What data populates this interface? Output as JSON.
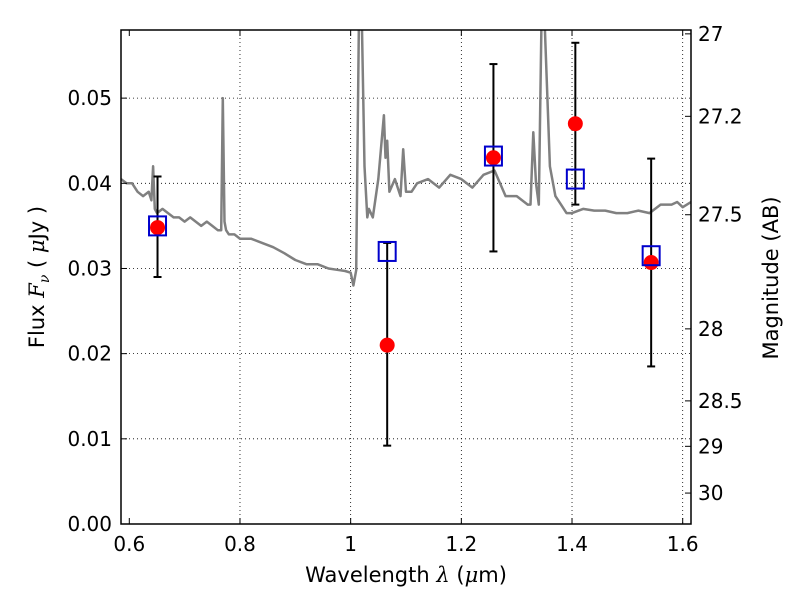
{
  "chart_data": {
    "type": "scatter",
    "xlabel": "Wavelength",
    "xlabel_symbol": "λ",
    "xlabel_unit_open": "(",
    "xlabel_unit_mu": "μ",
    "xlabel_unit_rest": "m)",
    "ylabel": "Flux",
    "ylabel_symbol": "F",
    "ylabel_subscript": "ν",
    "ylabel_unit_open": "( ",
    "ylabel_unit_mu": "μ",
    "ylabel_unit_rest": "Jy )",
    "y2label": "Magnitude (AB)",
    "xlim": [
      0.585,
      1.615
    ],
    "ylim": [
      0.0,
      0.058
    ],
    "x_ticks": [
      "0.6",
      "0.8",
      "1",
      "1.2",
      "1.4",
      "1.6"
    ],
    "x_tick_values": [
      0.6,
      0.8,
      1.0,
      1.2,
      1.4,
      1.6
    ],
    "y_ticks": [
      "0.00",
      "0.01",
      "0.02",
      "0.03",
      "0.04",
      "0.05"
    ],
    "y_tick_values": [
      0.0,
      0.01,
      0.02,
      0.03,
      0.04,
      0.05
    ],
    "mag_ticks": [
      "27",
      "27.2",
      "27.5",
      "28",
      "28.5",
      "29",
      "30"
    ],
    "mag_tick_values": [
      27,
      27.2,
      27.5,
      28,
      28.5,
      29,
      30
    ],
    "grid": true,
    "series": [
      {
        "kind": "spectrum",
        "color": "#808080",
        "x": [
          0.585,
          0.595,
          0.605,
          0.615,
          0.625,
          0.635,
          0.64,
          0.643,
          0.646,
          0.65,
          0.66,
          0.67,
          0.68,
          0.69,
          0.7,
          0.71,
          0.72,
          0.73,
          0.74,
          0.75,
          0.76,
          0.766,
          0.769,
          0.772,
          0.775,
          0.78,
          0.79,
          0.8,
          0.82,
          0.84,
          0.86,
          0.88,
          0.9,
          0.92,
          0.94,
          0.96,
          0.98,
          0.99,
          1.0,
          1.005,
          1.01,
          1.015,
          1.02,
          1.025,
          1.03,
          1.033,
          1.04,
          1.05,
          1.06,
          1.063,
          1.066,
          1.07,
          1.08,
          1.09,
          1.095,
          1.1,
          1.11,
          1.12,
          1.14,
          1.16,
          1.18,
          1.2,
          1.22,
          1.24,
          1.26,
          1.28,
          1.3,
          1.32,
          1.325,
          1.33,
          1.335,
          1.34,
          1.345,
          1.35,
          1.36,
          1.37,
          1.38,
          1.39,
          1.4,
          1.42,
          1.44,
          1.46,
          1.48,
          1.5,
          1.52,
          1.54,
          1.56,
          1.58,
          1.59,
          1.6,
          1.615
        ],
        "y": [
          0.0405,
          0.04,
          0.04,
          0.039,
          0.0385,
          0.039,
          0.038,
          0.042,
          0.037,
          0.0365,
          0.037,
          0.0365,
          0.036,
          0.036,
          0.0355,
          0.036,
          0.0355,
          0.035,
          0.0355,
          0.035,
          0.0345,
          0.0345,
          0.05,
          0.0355,
          0.0345,
          0.034,
          0.034,
          0.0335,
          0.0335,
          0.033,
          0.0325,
          0.0318,
          0.031,
          0.0305,
          0.0305,
          0.03,
          0.0298,
          0.0297,
          0.0295,
          0.028,
          0.0298,
          0.06,
          0.06,
          0.042,
          0.036,
          0.037,
          0.036,
          0.0405,
          0.048,
          0.043,
          0.045,
          0.039,
          0.0405,
          0.0385,
          0.044,
          0.039,
          0.039,
          0.04,
          0.0405,
          0.0395,
          0.041,
          0.0405,
          0.0395,
          0.041,
          0.0415,
          0.0385,
          0.0385,
          0.0375,
          0.0375,
          0.046,
          0.04,
          0.0375,
          0.06,
          0.06,
          0.042,
          0.0385,
          0.0375,
          0.0365,
          0.0365,
          0.037,
          0.0368,
          0.0368,
          0.0365,
          0.0365,
          0.0368,
          0.0365,
          0.0375,
          0.0375,
          0.0378,
          0.0372,
          0.0378
        ]
      },
      {
        "kind": "model-boxes",
        "color": "#0000cc",
        "x": [
          0.651,
          1.066,
          1.258,
          1.406,
          1.543
        ],
        "y": [
          0.035,
          0.032,
          0.0432,
          0.0405,
          0.0315
        ]
      },
      {
        "kind": "observed",
        "color": "#ff0000",
        "x": [
          0.651,
          1.066,
          1.258,
          1.406,
          1.543
        ],
        "y": [
          0.0348,
          0.021,
          0.043,
          0.047,
          0.0307
        ],
        "yerr_low": [
          0.0058,
          0.0118,
          0.011,
          0.0095,
          0.0122
        ],
        "yerr_high": [
          0.006,
          0.012,
          0.011,
          0.0095,
          0.0122
        ]
      }
    ]
  }
}
